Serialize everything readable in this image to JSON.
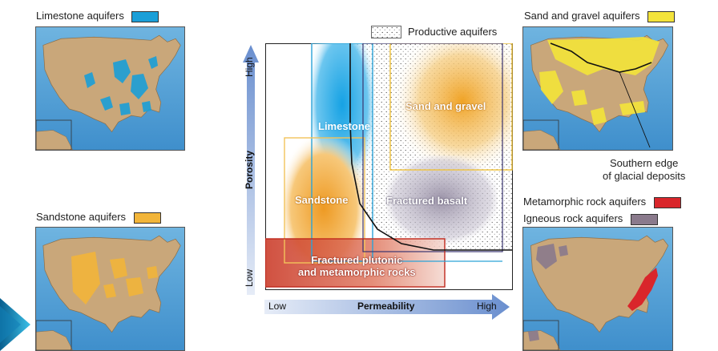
{
  "maps": {
    "limestone": {
      "label": "Limestone aquifers",
      "color": "#1a9fd8"
    },
    "sandstone": {
      "label": "Sandstone aquifers",
      "color": "#f2b53a"
    },
    "sand_gravel": {
      "label": "Sand and gravel aquifers",
      "color": "#f3e33b"
    },
    "metamorphic": {
      "label": "Metamorphic rock aquifers",
      "color": "#d9262b"
    },
    "igneous": {
      "label": "Igneous rock aquifers",
      "color": "#8a7a8c"
    },
    "glacial_note_line1": "Southern edge",
    "glacial_note_line2": "of glacial deposits"
  },
  "diagram": {
    "legend": "Productive aquifers",
    "y_axis": {
      "label": "Porosity",
      "high": "High",
      "low": "Low"
    },
    "x_axis": {
      "label": "Permeability",
      "low": "Low",
      "high": "High"
    },
    "regions": {
      "limestone": "Limestone",
      "sand_gravel": "Sand and gravel",
      "sandstone": "Sandstone",
      "basalt": "Fractured basalt",
      "plutonic_line1": "Fractured plutonic",
      "plutonic_line2": "and metamorphic rocks"
    },
    "colors": {
      "limestone": "#1ea6e0",
      "sand_gravel": "#f0a830",
      "sandstone": "#ef9d2a",
      "plutonic": "#c83a26",
      "basalt": "#9a8fa8",
      "axis_arrow": "#6a8fcf"
    }
  }
}
